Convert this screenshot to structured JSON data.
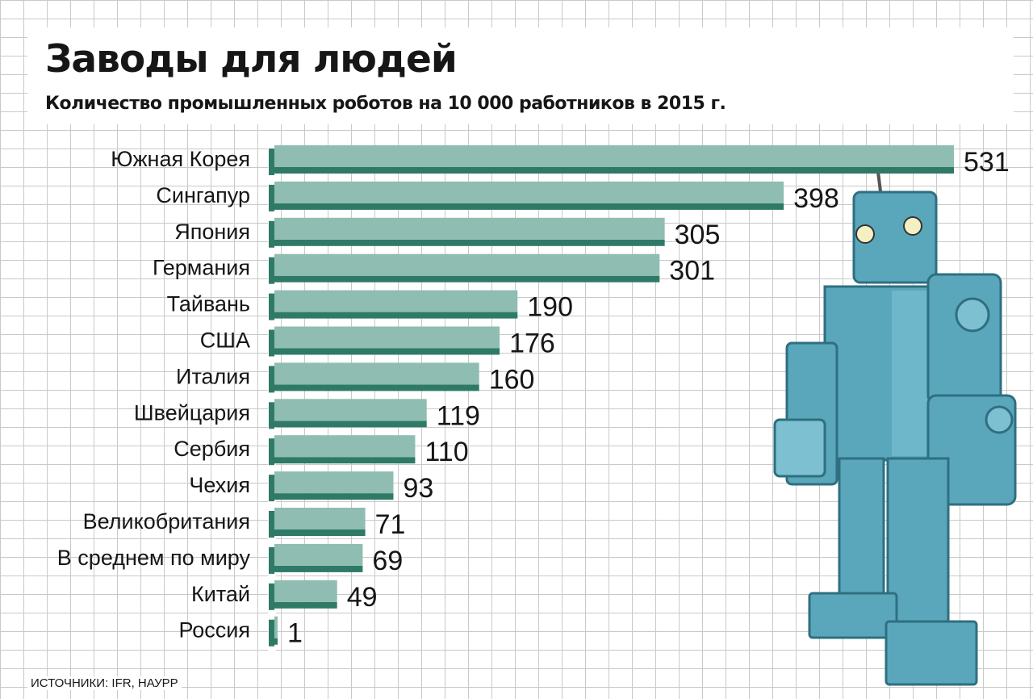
{
  "chart_data": {
    "type": "bar",
    "orientation": "horizontal",
    "title": "Заводы для людей",
    "subtitle": "Количество промышленных роботов на 10 000 работников в 2015 г.",
    "categories": [
      "Южная Корея",
      "Сингапур",
      "Япония",
      "Германия",
      "Тайвань",
      "США",
      "Италия",
      "Швейцария",
      "Сербия",
      "Чехия",
      "Великобритания",
      "В среднем по миру",
      "Китай",
      "Россия"
    ],
    "values": [
      531,
      398,
      305,
      301,
      190,
      176,
      160,
      119,
      110,
      93,
      71,
      69,
      49,
      1
    ],
    "value_labels": [
      "531",
      "398",
      "305",
      "301",
      "190",
      "176",
      "160",
      "119",
      "110",
      "93",
      "71",
      "69",
      "49",
      "1"
    ],
    "xlim": [
      0,
      531
    ],
    "grid": true,
    "legend": "none",
    "colors": {
      "bar_face": "#8fbdb1",
      "bar_shadow": "#2f7a67",
      "text": "#161616",
      "robot": "#5aa7bb"
    }
  },
  "source_note": "ИСТОЧНИКИ: IFR, НАУРР",
  "illustration": "robot"
}
